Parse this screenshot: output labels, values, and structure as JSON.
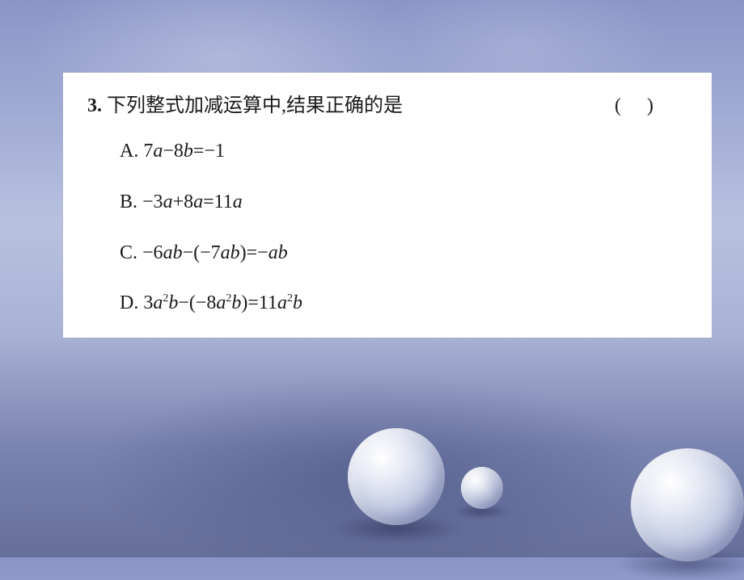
{
  "background": {
    "gradient_stops": [
      "#8a96c8",
      "#9aa5d0",
      "#b8c1df",
      "#a8b2d4",
      "#7a84b0",
      "#656f9a"
    ]
  },
  "card": {
    "bg_color": "#ffffff",
    "text_color": "#1a1a1a",
    "font_size_pt": 18
  },
  "question": {
    "number": "3.",
    "text": "下列整式加减运算中,结果正确的是",
    "paren_open": "(",
    "paren_close": ")"
  },
  "options": {
    "A": {
      "label": "A.",
      "expr_html": "7<span class='it'>a</span>−8<span class='it'>b</span>=−1"
    },
    "B": {
      "label": "B.",
      "expr_html": "−3<span class='it'>a</span>+8<span class='it'>a</span>=11<span class='it'>a</span>"
    },
    "C": {
      "label": "C.",
      "expr_html": "−6<span class='it'>ab</span>−(−7<span class='it'>ab</span>)=−<span class='it'>ab</span>"
    },
    "D": {
      "label": "D.",
      "expr_html": "3<span class='it'>a</span><sup>2</sup><span class='it'>b</span>−(−8<span class='it'>a</span><sup>2</sup><span class='it'>b</span>)=11<span class='it'>a</span><sup>2</sup><span class='it'>b</span>"
    }
  },
  "spheres": {
    "fill_stops": [
      "#ffffff",
      "#e8ebf5",
      "#c5cce4",
      "#9aa3c8",
      "#7a84b0"
    ],
    "shadow_color": "rgba(30,35,70,0.45)"
  }
}
